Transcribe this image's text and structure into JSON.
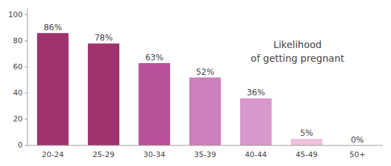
{
  "chart_data": {
    "type": "bar",
    "categories": [
      "20-24",
      "25-29",
      "30-34",
      "35-39",
      "40-44",
      "45-49",
      "50+"
    ],
    "values": [
      86,
      78,
      63,
      52,
      36,
      5,
      0
    ],
    "value_labels": [
      "86%",
      "78%",
      "63%",
      "52%",
      "36%",
      "5%",
      "0%"
    ],
    "colors": [
      "#a0336e",
      "#a0336e",
      "#b8509a",
      "#cc80bb",
      "#d898cc",
      "#f0c0de",
      "#f8dcea"
    ],
    "ylim": [
      0,
      105
    ],
    "yticks": [
      0,
      20,
      40,
      60,
      80,
      100
    ],
    "annotation": "Likelihood\nof getting pregnant",
    "data_labels": true,
    "grid": false
  }
}
